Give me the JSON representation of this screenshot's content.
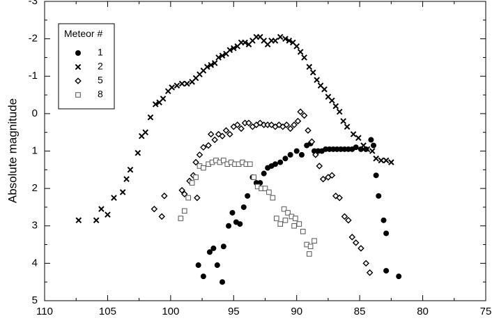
{
  "chart_data": {
    "type": "scatter",
    "xlabel": "",
    "ylabel": "Absolute magnitude",
    "xlim": [
      110,
      75
    ],
    "ylim": [
      5,
      -3
    ],
    "y_inverted": true,
    "x_reversed": true,
    "grid": false,
    "xticks": [
      "110",
      "105",
      "100",
      "95",
      "90",
      "85",
      "80",
      "75"
    ],
    "yticks": [
      "-3",
      "-2",
      "-1",
      "0",
      "1",
      "2",
      "3",
      "4",
      "5"
    ],
    "legend": {
      "title": "Meteor #",
      "placement": "top-left",
      "entries": [
        "1",
        "2",
        "5",
        "8"
      ]
    },
    "series": [
      {
        "name": "1",
        "marker": "filled-circle",
        "points": [
          [
            97.8,
            4.05
          ],
          [
            97.4,
            4.35
          ],
          [
            96.9,
            3.7
          ],
          [
            96.6,
            3.6
          ],
          [
            96.3,
            4.05
          ],
          [
            95.9,
            4.5
          ],
          [
            95.8,
            3.55
          ],
          [
            95.4,
            3.0
          ],
          [
            95.1,
            2.65
          ],
          [
            94.8,
            2.9
          ],
          [
            94.5,
            2.95
          ],
          [
            94.2,
            2.5
          ],
          [
            93.9,
            2.2
          ],
          [
            93.5,
            1.7
          ],
          [
            93.2,
            1.85
          ],
          [
            92.9,
            1.85
          ],
          [
            92.6,
            1.6
          ],
          [
            92.3,
            1.45
          ],
          [
            92.0,
            1.4
          ],
          [
            91.7,
            1.35
          ],
          [
            91.3,
            1.3
          ],
          [
            90.9,
            1.2
          ],
          [
            90.5,
            1.1
          ],
          [
            90.0,
            1.0
          ],
          [
            89.6,
            1.1
          ],
          [
            89.2,
            0.85
          ],
          [
            88.9,
            0.8
          ],
          [
            88.6,
            1.0
          ],
          [
            88.3,
            1.0
          ],
          [
            88.0,
            1.0
          ],
          [
            87.7,
            0.95
          ],
          [
            87.4,
            0.95
          ],
          [
            87.1,
            0.95
          ],
          [
            86.8,
            0.95
          ],
          [
            86.5,
            0.95
          ],
          [
            86.2,
            0.95
          ],
          [
            85.9,
            0.95
          ],
          [
            85.6,
            0.95
          ],
          [
            85.3,
            0.9
          ],
          [
            84.9,
            0.95
          ],
          [
            84.5,
            0.95
          ],
          [
            84.1,
            0.7
          ],
          [
            83.9,
            0.85
          ],
          [
            83.7,
            1.65
          ],
          [
            83.5,
            2.2
          ],
          [
            83.1,
            2.85
          ],
          [
            82.9,
            3.2
          ],
          [
            82.9,
            4.2
          ],
          [
            81.9,
            4.35
          ]
        ]
      },
      {
        "name": "2",
        "marker": "cross",
        "points": [
          [
            107.3,
            2.85
          ],
          [
            105.9,
            2.85
          ],
          [
            105.5,
            2.55
          ],
          [
            105.0,
            2.7
          ],
          [
            104.5,
            2.25
          ],
          [
            103.8,
            2.1
          ],
          [
            103.5,
            1.75
          ],
          [
            103.2,
            1.5
          ],
          [
            102.6,
            1.05
          ],
          [
            102.3,
            0.6
          ],
          [
            102.0,
            0.5
          ],
          [
            101.6,
            0.1
          ],
          [
            101.2,
            -0.25
          ],
          [
            100.9,
            -0.3
          ],
          [
            100.6,
            -0.4
          ],
          [
            100.2,
            -0.6
          ],
          [
            99.9,
            -0.7
          ],
          [
            99.5,
            -0.75
          ],
          [
            99.1,
            -0.8
          ],
          [
            98.7,
            -0.8
          ],
          [
            98.3,
            -0.85
          ],
          [
            98.0,
            -0.95
          ],
          [
            97.7,
            -1.05
          ],
          [
            97.4,
            -1.15
          ],
          [
            97.1,
            -1.25
          ],
          [
            96.8,
            -1.3
          ],
          [
            96.5,
            -1.35
          ],
          [
            96.2,
            -1.5
          ],
          [
            95.9,
            -1.55
          ],
          [
            95.6,
            -1.6
          ],
          [
            95.3,
            -1.7
          ],
          [
            95.0,
            -1.75
          ],
          [
            94.7,
            -1.8
          ],
          [
            94.4,
            -1.9
          ],
          [
            94.1,
            -1.9
          ],
          [
            93.8,
            -1.85
          ],
          [
            93.5,
            -1.95
          ],
          [
            93.2,
            -2.05
          ],
          [
            92.9,
            -2.05
          ],
          [
            92.6,
            -1.95
          ],
          [
            92.3,
            -1.85
          ],
          [
            92.0,
            -1.95
          ],
          [
            91.7,
            -1.95
          ],
          [
            91.3,
            -2.05
          ],
          [
            90.9,
            -2.0
          ],
          [
            90.6,
            -1.95
          ],
          [
            90.3,
            -1.9
          ],
          [
            90.0,
            -1.8
          ],
          [
            89.7,
            -1.65
          ],
          [
            89.4,
            -1.5
          ],
          [
            89.0,
            -1.25
          ],
          [
            88.7,
            -1.1
          ],
          [
            88.4,
            -0.9
          ],
          [
            88.1,
            -0.75
          ],
          [
            87.8,
            -0.65
          ],
          [
            87.5,
            -0.45
          ],
          [
            87.2,
            -0.35
          ],
          [
            86.9,
            -0.2
          ],
          [
            86.6,
            -0.05
          ],
          [
            86.3,
            0.2
          ],
          [
            86.0,
            0.35
          ],
          [
            85.5,
            0.55
          ],
          [
            85.1,
            0.65
          ],
          [
            84.7,
            0.85
          ],
          [
            84.4,
            0.95
          ],
          [
            84.0,
            1.0
          ],
          [
            83.7,
            1.2
          ],
          [
            83.3,
            1.25
          ],
          [
            82.9,
            1.25
          ],
          [
            82.5,
            1.3
          ]
        ]
      },
      {
        "name": "5",
        "marker": "open-diamond",
        "points": [
          [
            101.3,
            2.55
          ],
          [
            100.7,
            2.75
          ],
          [
            100.5,
            2.2
          ],
          [
            99.1,
            2.05
          ],
          [
            98.9,
            2.15
          ],
          [
            98.5,
            1.8
          ],
          [
            98.2,
            1.65
          ],
          [
            97.9,
            2.25
          ],
          [
            98.0,
            1.3
          ],
          [
            97.7,
            1.1
          ],
          [
            97.4,
            0.9
          ],
          [
            97.0,
            0.85
          ],
          [
            96.8,
            0.55
          ],
          [
            96.5,
            0.7
          ],
          [
            96.2,
            0.55
          ],
          [
            95.9,
            0.6
          ],
          [
            95.6,
            0.45
          ],
          [
            95.3,
            0.55
          ],
          [
            95.0,
            0.35
          ],
          [
            94.7,
            0.3
          ],
          [
            94.4,
            0.4
          ],
          [
            94.1,
            0.25
          ],
          [
            93.8,
            0.25
          ],
          [
            93.5,
            0.35
          ],
          [
            93.2,
            0.3
          ],
          [
            92.9,
            0.25
          ],
          [
            92.6,
            0.3
          ],
          [
            92.3,
            0.3
          ],
          [
            92.0,
            0.3
          ],
          [
            91.7,
            0.35
          ],
          [
            91.4,
            0.3
          ],
          [
            91.1,
            0.35
          ],
          [
            90.8,
            0.3
          ],
          [
            90.5,
            0.4
          ],
          [
            90.2,
            0.3
          ],
          [
            89.9,
            0.2
          ],
          [
            89.7,
            -0.05
          ],
          [
            89.4,
            0.05
          ],
          [
            89.1,
            0.45
          ],
          [
            88.8,
            0.75
          ],
          [
            88.5,
            1.1
          ],
          [
            88.2,
            1.4
          ],
          [
            87.9,
            1.75
          ],
          [
            87.5,
            1.7
          ],
          [
            87.2,
            1.65
          ],
          [
            86.9,
            2.2
          ],
          [
            86.6,
            2.25
          ],
          [
            86.2,
            2.75
          ],
          [
            85.9,
            2.85
          ],
          [
            85.6,
            3.3
          ],
          [
            85.3,
            3.45
          ],
          [
            84.9,
            3.6
          ],
          [
            84.5,
            4.0
          ],
          [
            84.2,
            4.25
          ]
        ]
      },
      {
        "name": "8",
        "marker": "open-square",
        "points": [
          [
            99.2,
            2.8
          ],
          [
            98.9,
            2.6
          ],
          [
            98.6,
            2.25
          ],
          [
            98.3,
            1.85
          ],
          [
            98.0,
            1.7
          ],
          [
            97.7,
            1.4
          ],
          [
            97.4,
            1.45
          ],
          [
            97.0,
            1.35
          ],
          [
            96.7,
            1.3
          ],
          [
            96.4,
            1.25
          ],
          [
            96.1,
            1.3
          ],
          [
            95.8,
            1.25
          ],
          [
            95.5,
            1.35
          ],
          [
            95.2,
            1.3
          ],
          [
            94.9,
            1.35
          ],
          [
            94.6,
            1.35
          ],
          [
            94.3,
            1.3
          ],
          [
            94.0,
            1.35
          ],
          [
            93.7,
            1.35
          ],
          [
            93.4,
            1.7
          ],
          [
            93.1,
            1.95
          ],
          [
            92.8,
            2.0
          ],
          [
            92.5,
            2.0
          ],
          [
            92.2,
            2.1
          ],
          [
            91.9,
            2.25
          ],
          [
            91.6,
            2.8
          ],
          [
            91.3,
            2.95
          ],
          [
            91.0,
            2.55
          ],
          [
            90.7,
            2.65
          ],
          [
            90.4,
            2.75
          ],
          [
            90.1,
            2.8
          ],
          [
            89.8,
            2.95
          ],
          [
            89.5,
            3.15
          ],
          [
            89.2,
            3.5
          ],
          [
            88.9,
            3.55
          ],
          [
            88.6,
            3.4
          ],
          [
            89.0,
            3.75
          ],
          [
            90.9,
            2.85
          ],
          [
            90.2,
            3.0
          ]
        ]
      }
    ]
  }
}
